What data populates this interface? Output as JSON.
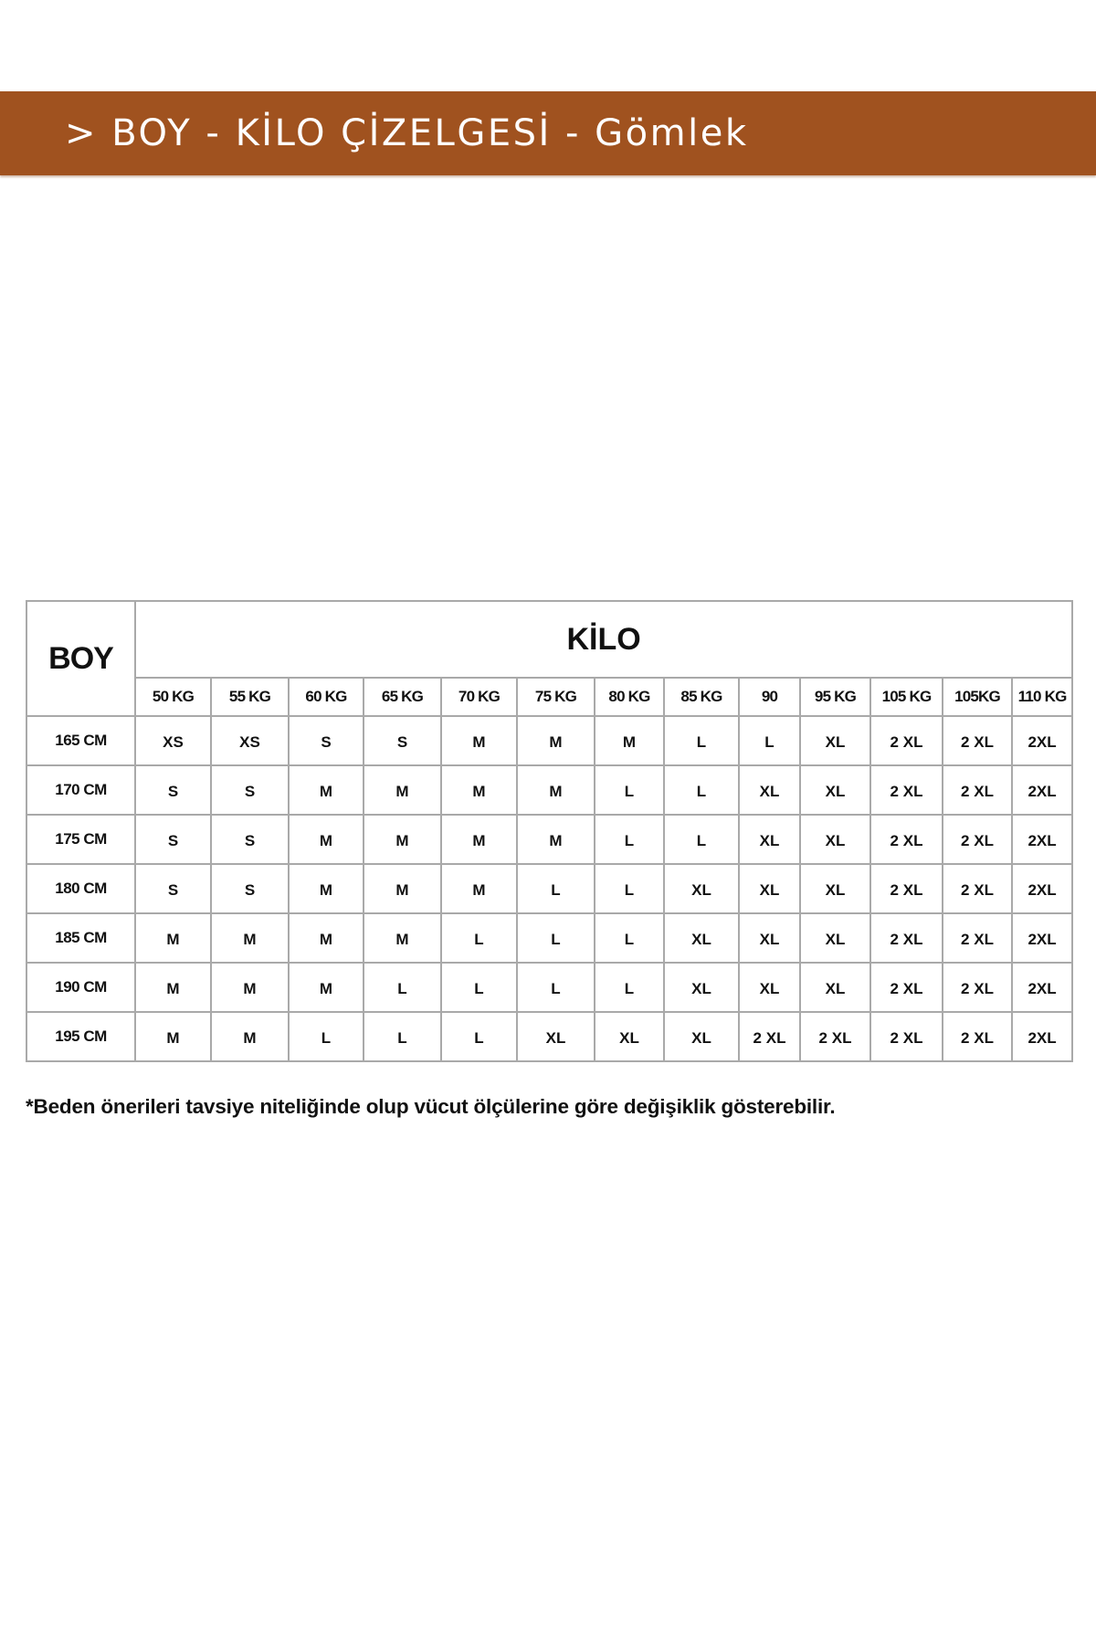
{
  "theme": {
    "accent": "#a0521f"
  },
  "banner": {
    "title": "> BOY - KİLO ÇİZELGESİ - Gömlek"
  },
  "table": {
    "corner_header": "BOY",
    "group_header": "KİLO",
    "weights": [
      "50 KG",
      "55 KG",
      "60 KG",
      "65 KG",
      "70 KG",
      "75 KG",
      "80 KG",
      "85 KG",
      "90",
      "95 KG",
      "105 KG",
      "105KG",
      "110 KG"
    ],
    "rows": [
      {
        "height": "165 CM",
        "sizes": [
          "XS",
          "XS",
          "S",
          "S",
          "M",
          "M",
          "M",
          "L",
          "L",
          "XL",
          "2 XL",
          "2 XL",
          "2XL"
        ]
      },
      {
        "height": "170 CM",
        "sizes": [
          "S",
          "S",
          "M",
          "M",
          "M",
          "M",
          "L",
          "L",
          "XL",
          "XL",
          "2 XL",
          "2 XL",
          "2XL"
        ]
      },
      {
        "height": "175 CM",
        "sizes": [
          "S",
          "S",
          "M",
          "M",
          "M",
          "M",
          "L",
          "L",
          "XL",
          "XL",
          "2 XL",
          "2 XL",
          "2XL"
        ]
      },
      {
        "height": "180 CM",
        "sizes": [
          "S",
          "S",
          "M",
          "M",
          "M",
          "L",
          "L",
          "XL",
          "XL",
          "XL",
          "2 XL",
          "2 XL",
          "2XL"
        ]
      },
      {
        "height": "185 CM",
        "sizes": [
          "M",
          "M",
          "M",
          "M",
          "L",
          "L",
          "L",
          "XL",
          "XL",
          "XL",
          "2 XL",
          "2 XL",
          "2XL"
        ]
      },
      {
        "height": "190 CM",
        "sizes": [
          "M",
          "M",
          "M",
          "L",
          "L",
          "L",
          "L",
          "XL",
          "XL",
          "XL",
          "2 XL",
          "2 XL",
          "2XL"
        ]
      },
      {
        "height": "195 CM",
        "sizes": [
          "M",
          "M",
          "L",
          "L",
          "L",
          "XL",
          "XL",
          "XL",
          "2 XL",
          "2 XL",
          "2 XL",
          "2 XL",
          "2XL"
        ]
      }
    ]
  },
  "footnote": "*Beden önerileri tavsiye niteliğinde olup vücut ölçülerine göre değişiklik gösterebilir."
}
